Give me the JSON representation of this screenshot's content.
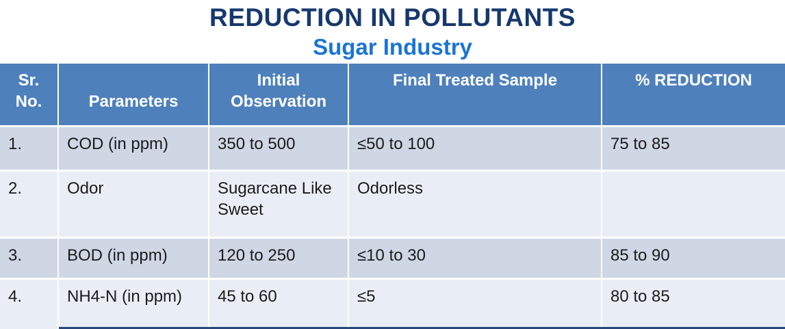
{
  "title": "REDUCTION IN POLLUTANTS",
  "subtitle": "Sugar Industry",
  "colors": {
    "title_text": "#16386E",
    "subtitle_text": "#1B74D4",
    "header_bg": "#4E80BC",
    "header_text": "#FFFFFF",
    "row_odd_bg": "#CFD6E4",
    "row_even_bg": "#E9EDF5",
    "body_text": "#1B1B1B",
    "divider": "#FFFFFF",
    "bottom_edge": "#27477A"
  },
  "chart_data": {
    "type": "table",
    "title": "REDUCTION IN POLLUTANTS - Sugar Industry",
    "headers": [
      "Sr.\nNo.",
      "Parameters",
      "Initial\nObservation",
      "Final Treated Sample",
      "% REDUCTION"
    ],
    "rows": [
      [
        "1.",
        "COD (in ppm)",
        "350 to 500",
        "≤50 to 100",
        "75 to 85"
      ],
      [
        "2.",
        "Odor",
        "Sugarcane Like Sweet",
        "Odorless",
        ""
      ],
      [
        "3.",
        "BOD (in ppm)",
        "120 to 250",
        "≤10 to 30",
        "85 to 90"
      ],
      [
        "4.",
        "NH4-N (in ppm)",
        "45 to 60",
        "≤5",
        "80 to 85"
      ]
    ]
  }
}
